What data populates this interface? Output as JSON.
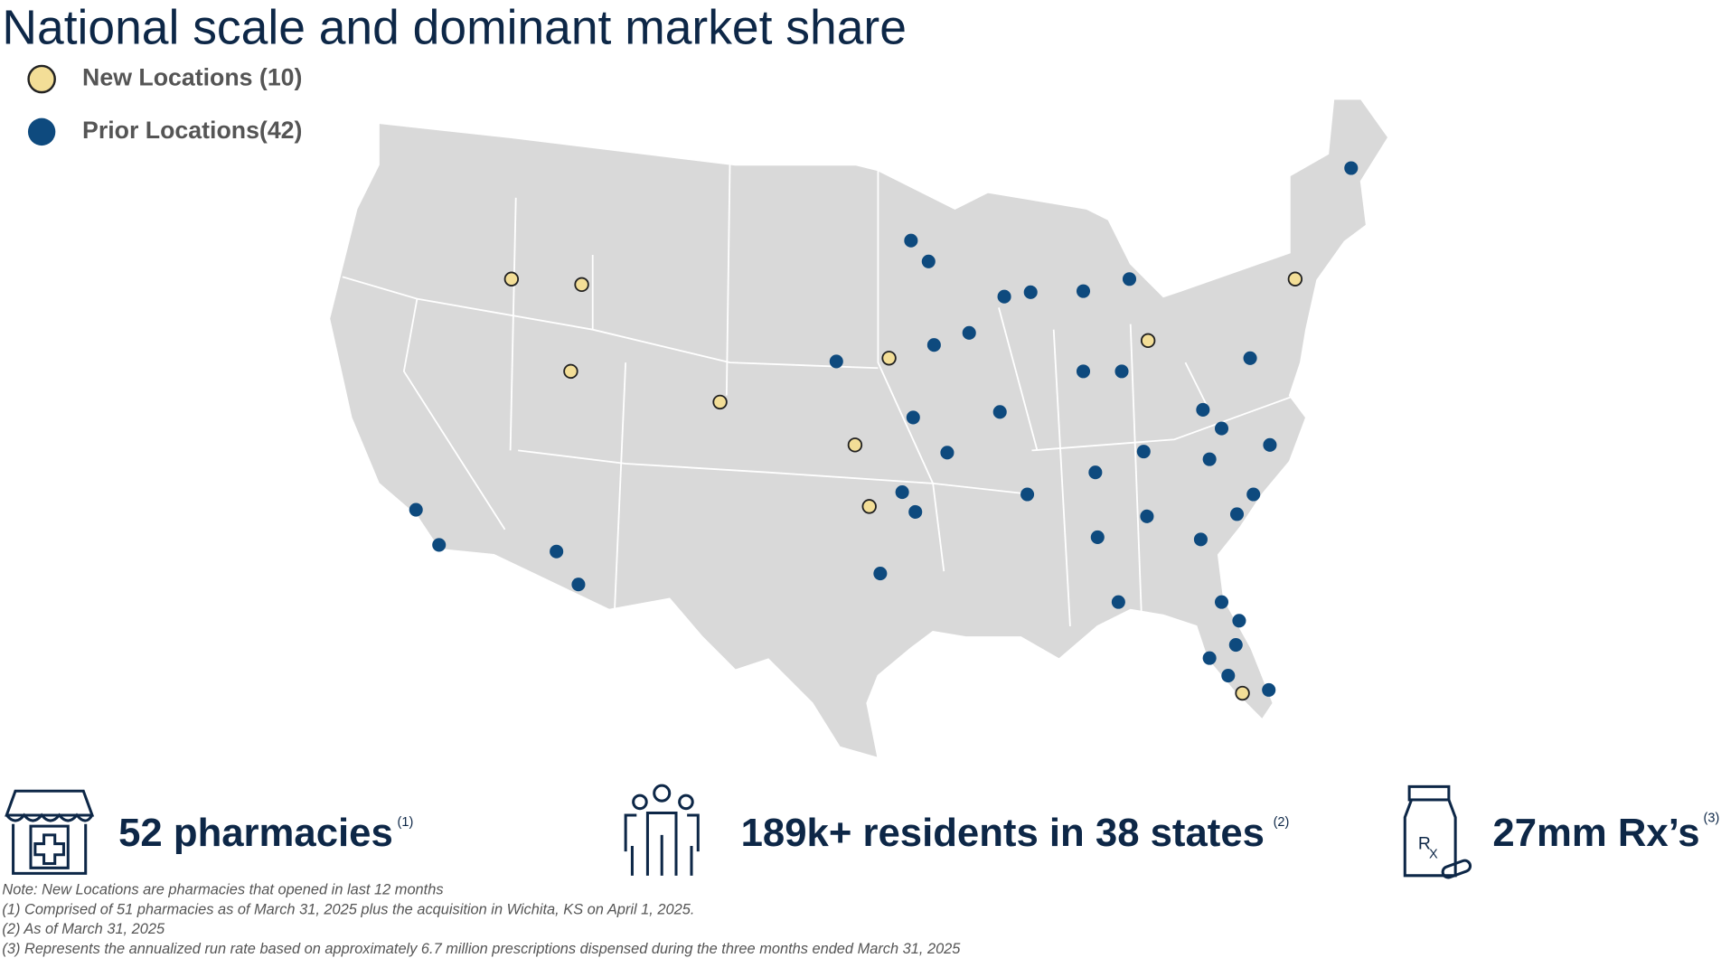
{
  "title": "National scale and dominant market share",
  "legend": [
    {
      "label": "New Locations (10)"
    },
    {
      "label": "Prior Locations(42)"
    }
  ],
  "stats": [
    {
      "text": "52 pharmacies",
      "note": "(1)"
    },
    {
      "text": "189k+ residents in 38 states",
      "note": "(2)"
    },
    {
      "text": "27mm Rx’s",
      "note": "(3)"
    }
  ],
  "footnotes": [
    "Note: New Locations are pharmacies that opened in last 12 months",
    "(1)  Comprised of 51 pharmacies as of March 31, 2025 plus the acquisition in Wichita, KS on April 1, 2025.",
    "(2) As of March 31, 2025",
    "(3) Represents the annualized run rate based on approximately 6.7 million prescriptions dispensed during the three months ended March 31, 2025"
  ]
}
